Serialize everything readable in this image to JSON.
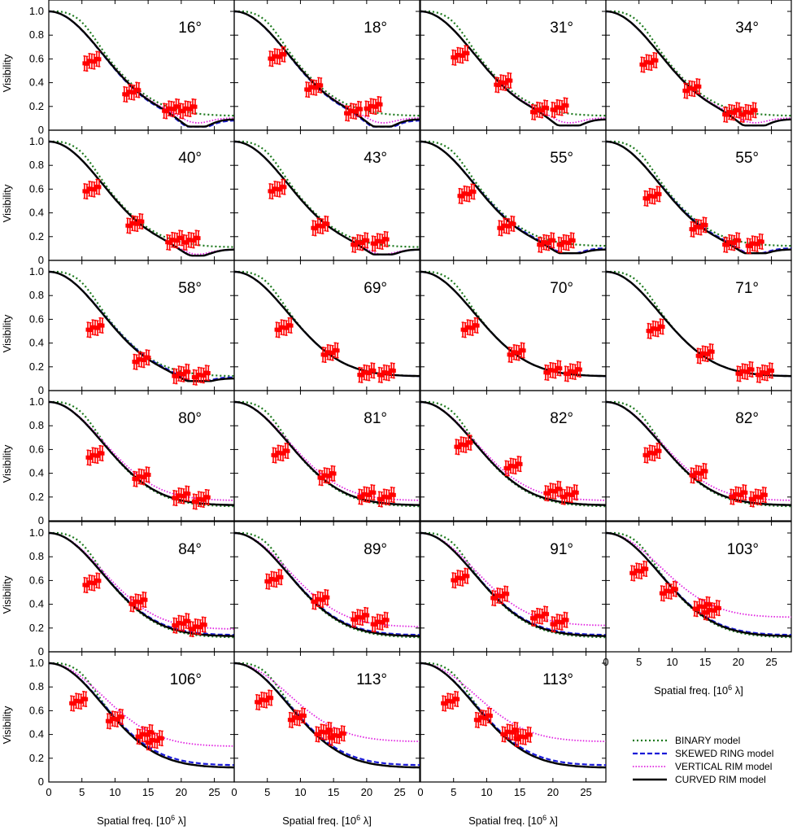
{
  "figure": {
    "ylabel": "Visibility",
    "xlabel_main": "Spatial freq. [10",
    "xlabel_exp": "6",
    "xlabel_tail": " λ]",
    "ylim": [
      0,
      1.0
    ],
    "xlim": [
      0,
      28
    ],
    "yticks": [
      "0",
      "0.2",
      "0.4",
      "0.6",
      "0.8",
      "1.0"
    ],
    "xticks": [
      "0",
      "5",
      "10",
      "15",
      "20",
      "25"
    ],
    "model_colors": {
      "BINARY": "#1e7a1e",
      "SKEWED RING": "#1a1ad8",
      "VERTICAL RIM": "#e020e0",
      "CURVED RIM": "#000000"
    },
    "data_color": "#ff0000"
  },
  "legend": {
    "position": "bottom-right",
    "items": [
      "BINARY model",
      "SKEWED RING model",
      "VERTICAL RIM model",
      "CURVED RIM model"
    ]
  },
  "chart_data": {
    "type": "line",
    "description_series": [
      "BINARY model",
      "SKEWED RING model",
      "VERTICAL RIM model",
      "CURVED RIM model"
    ],
    "panels": [
      {
        "angle": "16°",
        "row": 0,
        "col": 0,
        "obs": [
          [
            6.5,
            0.58
          ],
          [
            12.5,
            0.32
          ],
          [
            18.5,
            0.18
          ],
          [
            21,
            0.18
          ]
        ],
        "end": [
          0.12,
          0.08,
          0.1,
          0.09
        ],
        "minv": 0.03,
        "kink": 0.1
      },
      {
        "angle": "18°",
        "row": 0,
        "col": 1,
        "obs": [
          [
            6.5,
            0.62
          ],
          [
            12,
            0.36
          ],
          [
            18,
            0.16
          ],
          [
            21,
            0.2
          ]
        ],
        "end": [
          0.12,
          0.08,
          0.1,
          0.09
        ],
        "minv": 0.03,
        "kink": 0.1
      },
      {
        "angle": "31°",
        "row": 0,
        "col": 2,
        "obs": [
          [
            6,
            0.63
          ],
          [
            12.5,
            0.4
          ],
          [
            18,
            0.17
          ],
          [
            21,
            0.19
          ]
        ],
        "end": [
          0.12,
          0.09,
          0.1,
          0.09
        ],
        "minv": 0.04,
        "kink": 0.1
      },
      {
        "angle": "34°",
        "row": 0,
        "col": 3,
        "obs": [
          [
            6.5,
            0.57
          ],
          [
            13,
            0.35
          ],
          [
            19,
            0.15
          ],
          [
            21.5,
            0.15
          ]
        ],
        "end": [
          0.12,
          0.09,
          0.1,
          0.09
        ],
        "minv": 0.04,
        "kink": 0.1
      },
      {
        "angle": "40°",
        "row": 1,
        "col": 0,
        "obs": [
          [
            6.5,
            0.6
          ],
          [
            13,
            0.31
          ],
          [
            19,
            0.17
          ],
          [
            21.5,
            0.17
          ]
        ],
        "end": [
          0.11,
          0.09,
          0.09,
          0.09
        ],
        "minv": 0.04,
        "kink": 0.08
      },
      {
        "angle": "43°",
        "row": 1,
        "col": 1,
        "obs": [
          [
            6.5,
            0.6
          ],
          [
            13,
            0.29
          ],
          [
            19,
            0.15
          ],
          [
            22,
            0.16
          ]
        ],
        "end": [
          0.11,
          0.09,
          0.09,
          0.09
        ],
        "minv": 0.05,
        "kink": 0.08
      },
      {
        "angle": "55°",
        "row": 1,
        "col": 2,
        "obs": [
          [
            7,
            0.56
          ],
          [
            13,
            0.29
          ],
          [
            19,
            0.15
          ],
          [
            22,
            0.15
          ]
        ],
        "end": [
          0.12,
          0.1,
          0.09,
          0.09
        ],
        "minv": 0.06,
        "kink": 0.07
      },
      {
        "angle": "55°",
        "row": 1,
        "col": 3,
        "obs": [
          [
            7,
            0.54
          ],
          [
            14,
            0.28
          ],
          [
            19,
            0.15
          ],
          [
            22.5,
            0.14
          ]
        ],
        "end": [
          0.12,
          0.1,
          0.09,
          0.09
        ],
        "minv": 0.06,
        "kink": 0.07
      },
      {
        "angle": "58°",
        "row": 2,
        "col": 0,
        "obs": [
          [
            7,
            0.53
          ],
          [
            14,
            0.26
          ],
          [
            20,
            0.14
          ],
          [
            23,
            0.13
          ]
        ],
        "end": [
          0.12,
          0.11,
          0.1,
          0.1
        ],
        "minv": 0.08,
        "kink": 0.06
      },
      {
        "angle": "69°",
        "row": 2,
        "col": 1,
        "obs": [
          [
            7.5,
            0.53
          ],
          [
            14.5,
            0.32
          ],
          [
            20,
            0.15
          ],
          [
            23,
            0.15
          ]
        ],
        "end": [
          0.12,
          0.12,
          0.12,
          0.12
        ],
        "minv": 0.1,
        "kink": 0.05
      },
      {
        "angle": "70°",
        "row": 2,
        "col": 2,
        "obs": [
          [
            7.5,
            0.53
          ],
          [
            14.5,
            0.32
          ],
          [
            20,
            0.17
          ],
          [
            23,
            0.16
          ]
        ],
        "end": [
          0.12,
          0.12,
          0.12,
          0.12
        ],
        "minv": 0.1,
        "kink": 0.05
      },
      {
        "angle": "71°",
        "row": 2,
        "col": 3,
        "obs": [
          [
            7.5,
            0.52
          ],
          [
            15,
            0.31
          ],
          [
            21,
            0.16
          ],
          [
            24,
            0.15
          ]
        ],
        "end": [
          0.12,
          0.12,
          0.12,
          0.12
        ],
        "minv": 0.1,
        "kink": 0.05
      },
      {
        "angle": "80°",
        "row": 3,
        "col": 0,
        "obs": [
          [
            7,
            0.55
          ],
          [
            14,
            0.37
          ],
          [
            20,
            0.21
          ],
          [
            23,
            0.18
          ]
        ],
        "end": [
          0.12,
          0.13,
          0.17,
          0.13
        ],
        "minv": 0.12,
        "kink": 0.04
      },
      {
        "angle": "81°",
        "row": 3,
        "col": 1,
        "obs": [
          [
            7,
            0.57
          ],
          [
            14,
            0.38
          ],
          [
            20,
            0.22
          ],
          [
            23,
            0.2
          ]
        ],
        "end": [
          0.12,
          0.13,
          0.17,
          0.13
        ],
        "minv": 0.12,
        "kink": 0.04
      },
      {
        "angle": "82°",
        "row": 3,
        "col": 2,
        "obs": [
          [
            6.5,
            0.64
          ],
          [
            14,
            0.46
          ],
          [
            20,
            0.25
          ],
          [
            22.5,
            0.22
          ]
        ],
        "end": [
          0.12,
          0.13,
          0.17,
          0.13
        ],
        "minv": 0.12,
        "kink": 0.04
      },
      {
        "angle": "82°",
        "row": 3,
        "col": 3,
        "obs": [
          [
            7,
            0.57
          ],
          [
            14,
            0.4
          ],
          [
            20,
            0.22
          ],
          [
            23,
            0.2
          ]
        ],
        "end": [
          0.12,
          0.13,
          0.17,
          0.13
        ],
        "minv": 0.12,
        "kink": 0.04
      },
      {
        "angle": "84°",
        "row": 4,
        "col": 0,
        "obs": [
          [
            6.5,
            0.58
          ],
          [
            13.5,
            0.42
          ],
          [
            20,
            0.24
          ],
          [
            22.5,
            0.21
          ]
        ],
        "end": [
          0.12,
          0.14,
          0.19,
          0.13
        ],
        "minv": 0.13,
        "kink": 0.03
      },
      {
        "angle": "89°",
        "row": 4,
        "col": 1,
        "obs": [
          [
            6,
            0.61
          ],
          [
            13,
            0.44
          ],
          [
            19,
            0.29
          ],
          [
            22,
            0.25
          ]
        ],
        "end": [
          0.12,
          0.14,
          0.21,
          0.13
        ],
        "minv": 0.13,
        "kink": 0.03
      },
      {
        "angle": "91°",
        "row": 4,
        "col": 2,
        "obs": [
          [
            6,
            0.62
          ],
          [
            12,
            0.47
          ],
          [
            18,
            0.3
          ],
          [
            21,
            0.25
          ]
        ],
        "end": [
          0.12,
          0.14,
          0.22,
          0.13
        ],
        "minv": 0.13,
        "kink": 0.03
      },
      {
        "angle": "103°",
        "row": 4,
        "col": 3,
        "obs": [
          [
            5,
            0.68
          ],
          [
            9.5,
            0.51
          ],
          [
            14.5,
            0.38
          ],
          [
            16,
            0.35
          ]
        ],
        "end": [
          0.12,
          0.14,
          0.29,
          0.13
        ],
        "minv": 0.13,
        "kink": 0.03
      },
      {
        "angle": "106°",
        "row": 5,
        "col": 0,
        "obs": [
          [
            4.5,
            0.68
          ],
          [
            10,
            0.53
          ],
          [
            14.5,
            0.4
          ],
          [
            16,
            0.35
          ]
        ],
        "end": [
          0.12,
          0.14,
          0.3,
          0.12
        ],
        "minv": 0.12,
        "kink": 0.02
      },
      {
        "angle": "113°",
        "row": 5,
        "col": 1,
        "obs": [
          [
            4.5,
            0.69
          ],
          [
            9.5,
            0.54
          ],
          [
            13.5,
            0.42
          ],
          [
            15.5,
            0.39
          ]
        ],
        "end": [
          0.12,
          0.14,
          0.34,
          0.12
        ],
        "minv": 0.12,
        "kink": 0.02
      },
      {
        "angle": "113°",
        "row": 5,
        "col": 2,
        "obs": [
          [
            4.5,
            0.68
          ],
          [
            9.5,
            0.54
          ],
          [
            13.5,
            0.42
          ],
          [
            15.5,
            0.38
          ]
        ],
        "end": [
          0.12,
          0.14,
          0.34,
          0.12
        ],
        "minv": 0.12,
        "kink": 0.02
      }
    ]
  }
}
